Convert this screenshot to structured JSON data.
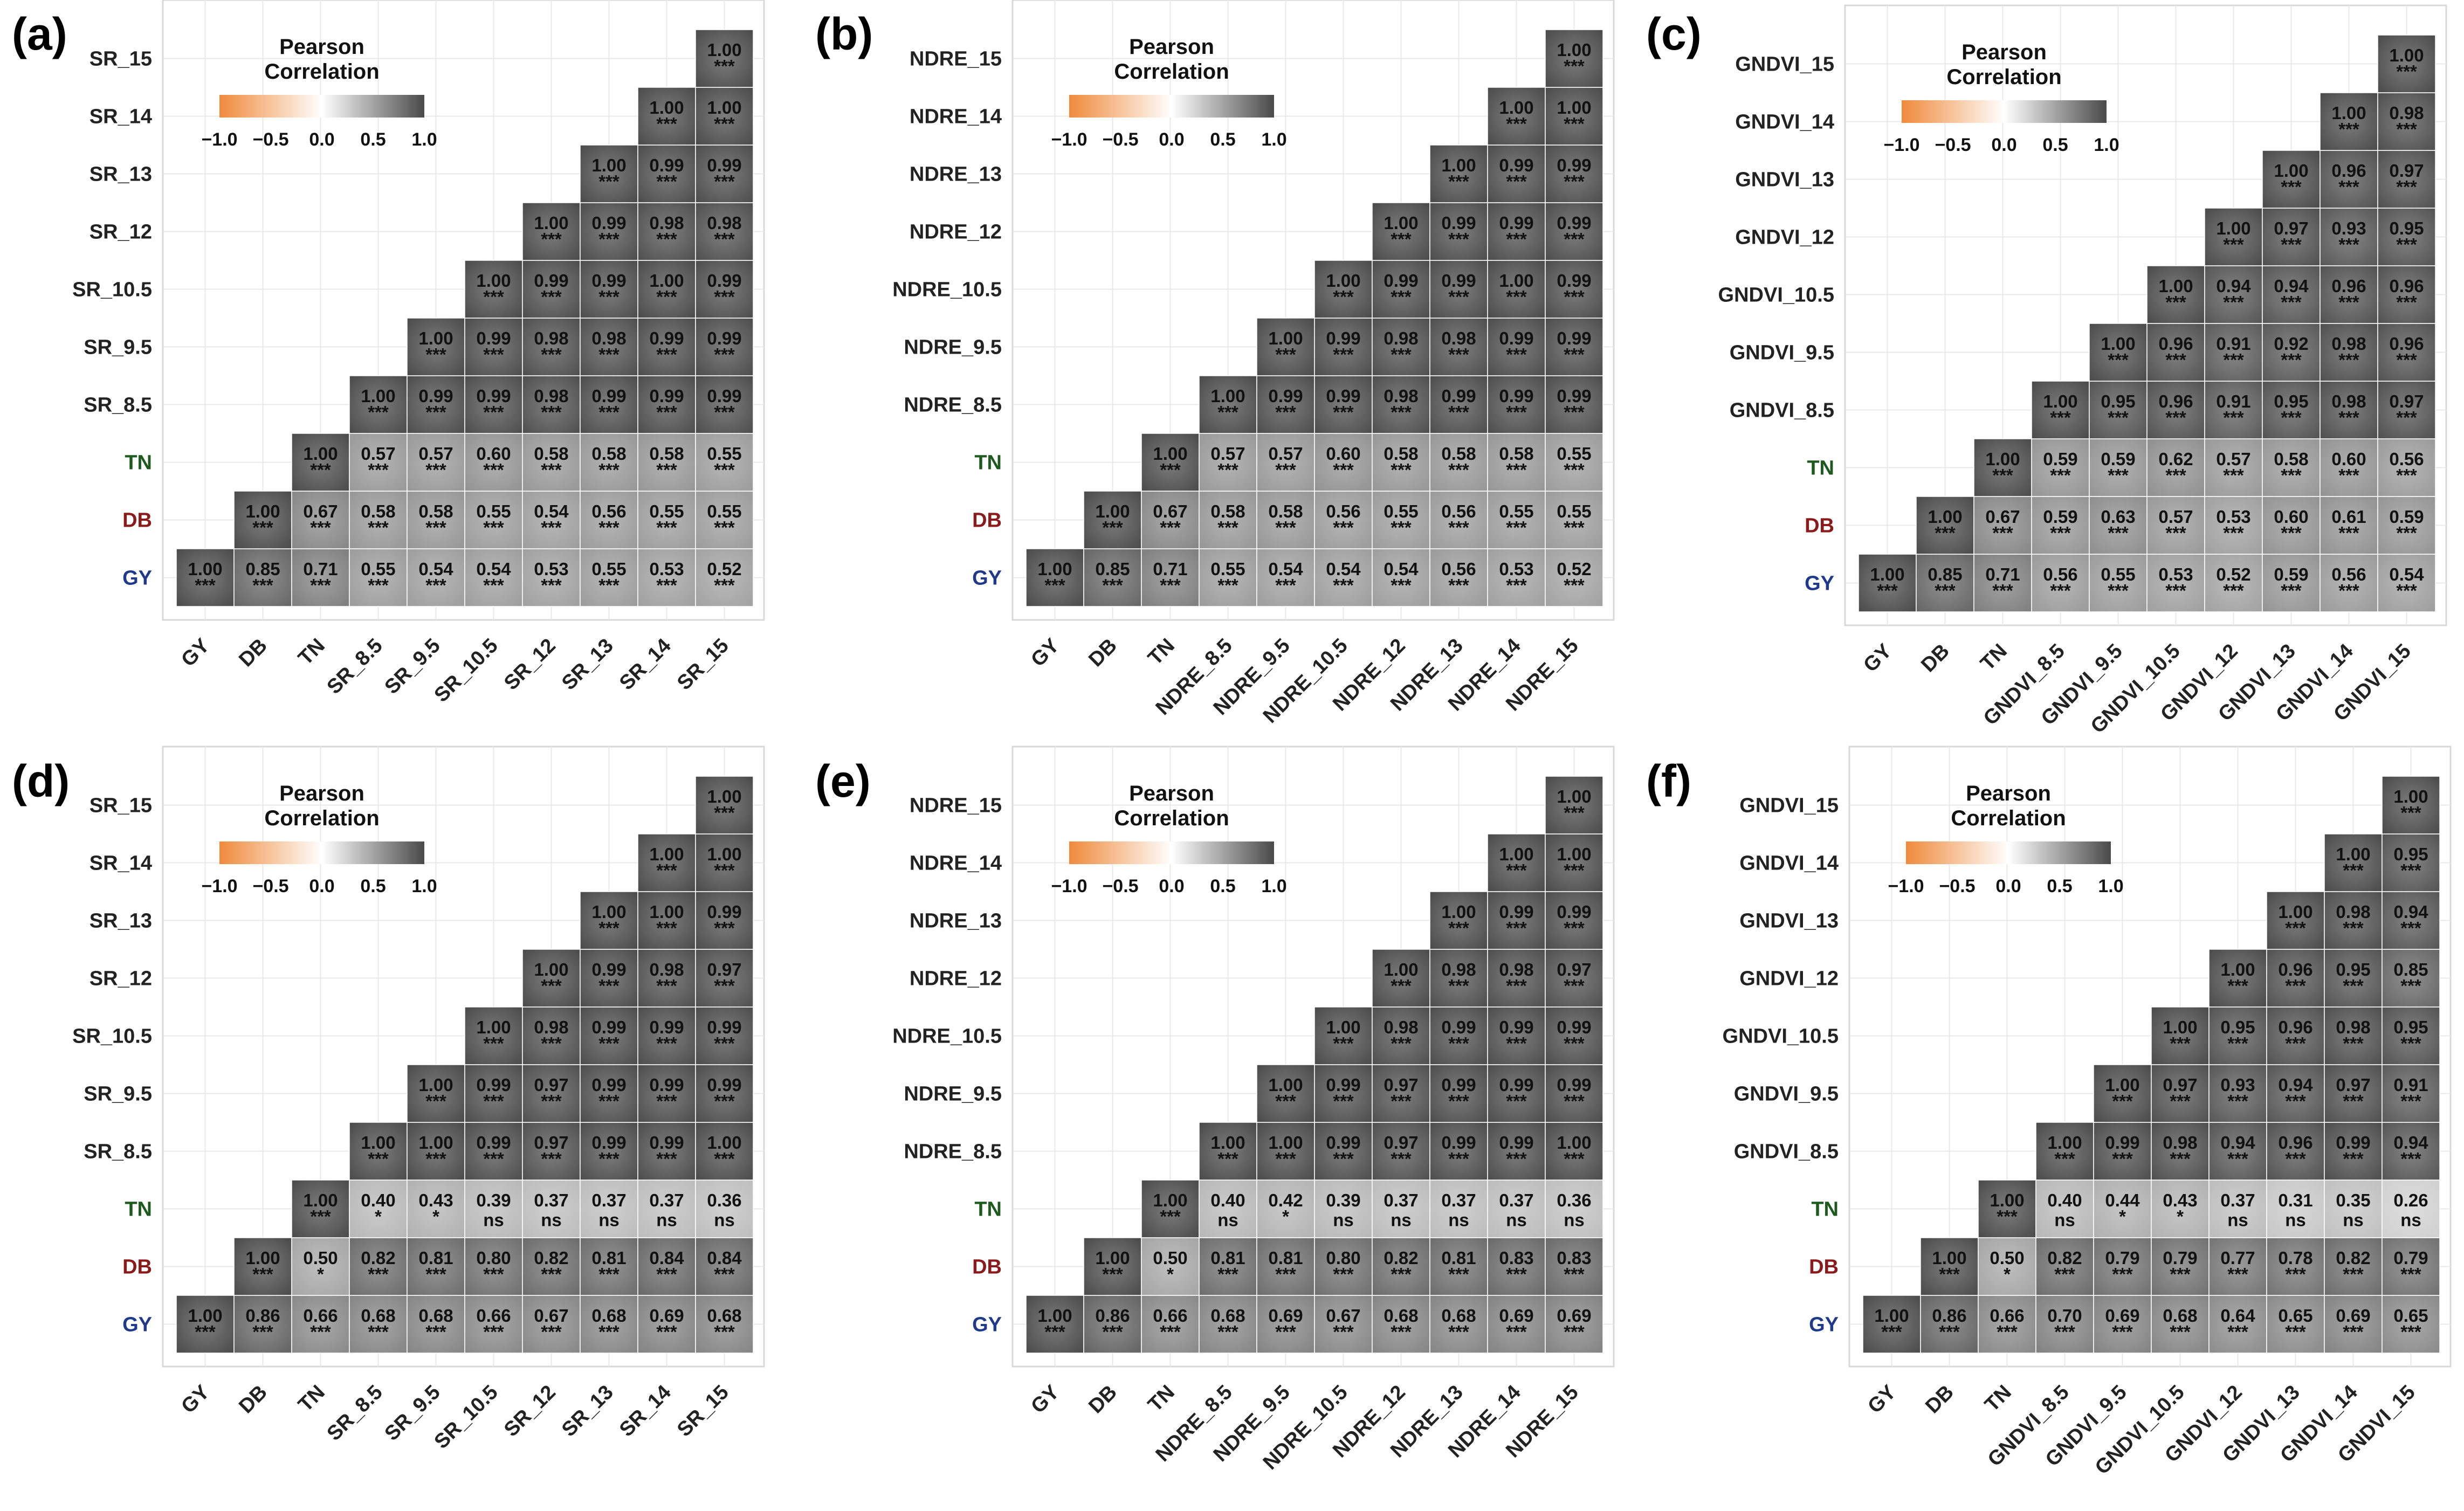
{
  "colors": {
    "GY": "#1f3a8a",
    "DB": "#8b1a1a",
    "TN": "#1e5a1e",
    "band": "#444444",
    "neg": "#f08a3c",
    "mid": "#ffffff",
    "pos": "#4a4a4a",
    "grid": "#e8e8e8",
    "panel_border": "#d8d8d8"
  },
  "legend": {
    "title_line1": "Pearson",
    "title_line2": "Correlation",
    "ticks": [
      "−1.0",
      "−0.5",
      "0.0",
      "0.5",
      "1.0"
    ]
  },
  "chart_data": [
    {
      "type": "heatmap",
      "panel": "(a)",
      "variables": [
        "GY",
        "DB",
        "TN",
        "SR_8.5",
        "SR_9.5",
        "SR_10.5",
        "SR_12",
        "SR_13",
        "SR_14",
        "SR_15"
      ],
      "x_labels": [
        "GY",
        "DB",
        "TN",
        "SR_8.5",
        "SR_9.5",
        "SR_10.5",
        "SR_12",
        "SR_13",
        "SR_14",
        "SR_15"
      ],
      "y_labels": [
        "SR_15",
        "SR_14",
        "SR_13",
        "SR_12",
        "SR_10.5",
        "SR_9.5",
        "SR_8.5",
        "TN",
        "DB",
        "GY"
      ],
      "values": [
        [
          "1.00"
        ],
        [
          "0.85",
          "1.00"
        ],
        [
          "0.71",
          "0.67",
          "1.00"
        ],
        [
          "0.55",
          "0.58",
          "0.57",
          "1.00"
        ],
        [
          "0.54",
          "0.58",
          "0.57",
          "0.99",
          "1.00"
        ],
        [
          "0.54",
          "0.55",
          "0.60",
          "0.99",
          "0.99",
          "1.00"
        ],
        [
          "0.53",
          "0.54",
          "0.58",
          "0.98",
          "0.98",
          "0.99",
          "1.00"
        ],
        [
          "0.55",
          "0.56",
          "0.58",
          "0.99",
          "0.98",
          "0.99",
          "0.99",
          "1.00"
        ],
        [
          "0.53",
          "0.55",
          "0.58",
          "0.99",
          "0.99",
          "1.00",
          "0.98",
          "0.99",
          "1.00"
        ],
        [
          "0.52",
          "0.55",
          "0.55",
          "0.99",
          "0.99",
          "0.99",
          "0.98",
          "0.99",
          "1.00",
          "1.00"
        ]
      ],
      "significance": [
        [
          "***"
        ],
        [
          "***",
          "***"
        ],
        [
          "***",
          "***",
          "***"
        ],
        [
          "***",
          "***",
          "***",
          "***"
        ],
        [
          "***",
          "***",
          "***",
          "***",
          "***"
        ],
        [
          "***",
          "***",
          "***",
          "***",
          "***",
          "***"
        ],
        [
          "***",
          "***",
          "***",
          "***",
          "***",
          "***",
          "***"
        ],
        [
          "***",
          "***",
          "***",
          "***",
          "***",
          "***",
          "***",
          "***"
        ],
        [
          "***",
          "***",
          "***",
          "***",
          "***",
          "***",
          "***",
          "***",
          "***"
        ],
        [
          "***",
          "***",
          "***",
          "***",
          "***",
          "***",
          "***",
          "***",
          "***",
          "***"
        ]
      ]
    },
    {
      "type": "heatmap",
      "panel": "(b)",
      "variables": [
        "GY",
        "DB",
        "TN",
        "NDRE_8.5",
        "NDRE_9.5",
        "NDRE_10.5",
        "NDRE_12",
        "NDRE_13",
        "NDRE_14",
        "NDRE_15"
      ],
      "x_labels": [
        "GY",
        "DB",
        "TN",
        "NDRE_8.5",
        "NDRE_9.5",
        "NDRE_10.5",
        "NDRE_12",
        "NDRE_13",
        "NDRE_14",
        "NDRE_15"
      ],
      "y_labels": [
        "NDRE_15",
        "NDRE_14",
        "NDRE_13",
        "NDRE_12",
        "NDRE_10.5",
        "NDRE_9.5",
        "NDRE_8.5",
        "TN",
        "DB",
        "GY"
      ],
      "values": [
        [
          "1.00"
        ],
        [
          "0.85",
          "1.00"
        ],
        [
          "0.71",
          "0.67",
          "1.00"
        ],
        [
          "0.55",
          "0.58",
          "0.57",
          "1.00"
        ],
        [
          "0.54",
          "0.58",
          "0.57",
          "0.99",
          "1.00"
        ],
        [
          "0.54",
          "0.56",
          "0.60",
          "0.99",
          "0.99",
          "1.00"
        ],
        [
          "0.54",
          "0.55",
          "0.58",
          "0.98",
          "0.98",
          "0.99",
          "1.00"
        ],
        [
          "0.56",
          "0.56",
          "0.58",
          "0.99",
          "0.98",
          "0.99",
          "0.99",
          "1.00"
        ],
        [
          "0.53",
          "0.55",
          "0.58",
          "0.99",
          "0.99",
          "1.00",
          "0.99",
          "0.99",
          "1.00"
        ],
        [
          "0.52",
          "0.55",
          "0.55",
          "0.99",
          "0.99",
          "0.99",
          "0.99",
          "0.99",
          "1.00",
          "1.00"
        ]
      ],
      "significance": [
        [
          "***"
        ],
        [
          "***",
          "***"
        ],
        [
          "***",
          "***",
          "***"
        ],
        [
          "***",
          "***",
          "***",
          "***"
        ],
        [
          "***",
          "***",
          "***",
          "***",
          "***"
        ],
        [
          "***",
          "***",
          "***",
          "***",
          "***",
          "***"
        ],
        [
          "***",
          "***",
          "***",
          "***",
          "***",
          "***",
          "***"
        ],
        [
          "***",
          "***",
          "***",
          "***",
          "***",
          "***",
          "***",
          "***"
        ],
        [
          "***",
          "***",
          "***",
          "***",
          "***",
          "***",
          "***",
          "***",
          "***"
        ],
        [
          "***",
          "***",
          "***",
          "***",
          "***",
          "***",
          "***",
          "***",
          "***",
          "***"
        ]
      ]
    },
    {
      "type": "heatmap",
      "panel": "(c)",
      "variables": [
        "GY",
        "DB",
        "TN",
        "GNDVI_8.5",
        "GNDVI_9.5",
        "GNDVI_10.5",
        "GNDVI_12",
        "GNDVI_13",
        "GNDVI_14",
        "GNDVI_15"
      ],
      "x_labels": [
        "GY",
        "DB",
        "TN",
        "GNDVI_8.5",
        "GNDVI_9.5",
        "GNDVI_10.5",
        "GNDVI_12",
        "GNDVI_13",
        "GNDVI_14",
        "GNDVI_15"
      ],
      "y_labels": [
        "GNDVI_15",
        "GNDVI_14",
        "GNDVI_13",
        "GNDVI_12",
        "GNDVI_10.5",
        "GNDVI_9.5",
        "GNDVI_8.5",
        "TN",
        "DB",
        "GY"
      ],
      "values": [
        [
          "1.00"
        ],
        [
          "0.85",
          "1.00"
        ],
        [
          "0.71",
          "0.67",
          "1.00"
        ],
        [
          "0.56",
          "0.59",
          "0.59",
          "1.00"
        ],
        [
          "0.55",
          "0.63",
          "0.59",
          "0.95",
          "1.00"
        ],
        [
          "0.53",
          "0.57",
          "0.62",
          "0.96",
          "0.96",
          "1.00"
        ],
        [
          "0.52",
          "0.53",
          "0.57",
          "0.91",
          "0.91",
          "0.94",
          "1.00"
        ],
        [
          "0.59",
          "0.60",
          "0.58",
          "0.95",
          "0.92",
          "0.94",
          "0.97",
          "1.00"
        ],
        [
          "0.56",
          "0.61",
          "0.60",
          "0.98",
          "0.98",
          "0.96",
          "0.93",
          "0.96",
          "1.00"
        ],
        [
          "0.54",
          "0.59",
          "0.56",
          "0.97",
          "0.96",
          "0.96",
          "0.95",
          "0.97",
          "0.98",
          "1.00"
        ]
      ],
      "significance": [
        [
          "***"
        ],
        [
          "***",
          "***"
        ],
        [
          "***",
          "***",
          "***"
        ],
        [
          "***",
          "***",
          "***",
          "***"
        ],
        [
          "***",
          "***",
          "***",
          "***",
          "***"
        ],
        [
          "***",
          "***",
          "***",
          "***",
          "***",
          "***"
        ],
        [
          "***",
          "***",
          "***",
          "***",
          "***",
          "***",
          "***"
        ],
        [
          "***",
          "***",
          "***",
          "***",
          "***",
          "***",
          "***",
          "***"
        ],
        [
          "***",
          "***",
          "***",
          "***",
          "***",
          "***",
          "***",
          "***",
          "***"
        ],
        [
          "***",
          "***",
          "***",
          "***",
          "***",
          "***",
          "***",
          "***",
          "***",
          "***"
        ]
      ]
    },
    {
      "type": "heatmap",
      "panel": "(d)",
      "variables": [
        "GY",
        "DB",
        "TN",
        "SR_8.5",
        "SR_9.5",
        "SR_10.5",
        "SR_12",
        "SR_13",
        "SR_14",
        "SR_15"
      ],
      "x_labels": [
        "GY",
        "DB",
        "TN",
        "SR_8.5",
        "SR_9.5",
        "SR_10.5",
        "SR_12",
        "SR_13",
        "SR_14",
        "SR_15"
      ],
      "y_labels": [
        "SR_15",
        "SR_14",
        "SR_13",
        "SR_12",
        "SR_10.5",
        "SR_9.5",
        "SR_8.5",
        "TN",
        "DB",
        "GY"
      ],
      "values": [
        [
          "1.00"
        ],
        [
          "0.86",
          "1.00"
        ],
        [
          "0.66",
          "0.50",
          "1.00"
        ],
        [
          "0.68",
          "0.82",
          "0.40",
          "1.00"
        ],
        [
          "0.68",
          "0.81",
          "0.43",
          "1.00",
          "1.00"
        ],
        [
          "0.66",
          "0.80",
          "0.39",
          "0.99",
          "0.99",
          "1.00"
        ],
        [
          "0.67",
          "0.82",
          "0.37",
          "0.97",
          "0.97",
          "0.98",
          "1.00"
        ],
        [
          "0.68",
          "0.81",
          "0.37",
          "0.99",
          "0.99",
          "0.99",
          "0.99",
          "1.00"
        ],
        [
          "0.69",
          "0.84",
          "0.37",
          "0.99",
          "0.99",
          "0.99",
          "0.98",
          "1.00",
          "1.00"
        ],
        [
          "0.68",
          "0.84",
          "0.36",
          "1.00",
          "0.99",
          "0.99",
          "0.97",
          "0.99",
          "1.00",
          "1.00"
        ]
      ],
      "significance": [
        [
          "***"
        ],
        [
          "***",
          "***"
        ],
        [
          "***",
          "*",
          "***"
        ],
        [
          "***",
          "***",
          "*",
          "***"
        ],
        [
          "***",
          "***",
          "*",
          "***",
          "***"
        ],
        [
          "***",
          "***",
          "ns",
          "***",
          "***",
          "***"
        ],
        [
          "***",
          "***",
          "ns",
          "***",
          "***",
          "***",
          "***"
        ],
        [
          "***",
          "***",
          "ns",
          "***",
          "***",
          "***",
          "***",
          "***"
        ],
        [
          "***",
          "***",
          "ns",
          "***",
          "***",
          "***",
          "***",
          "***",
          "***"
        ],
        [
          "***",
          "***",
          "ns",
          "***",
          "***",
          "***",
          "***",
          "***",
          "***",
          "***"
        ]
      ]
    },
    {
      "type": "heatmap",
      "panel": "(e)",
      "variables": [
        "GY",
        "DB",
        "TN",
        "NDRE_8.5",
        "NDRE_9.5",
        "NDRE_10.5",
        "NDRE_12",
        "NDRE_13",
        "NDRE_14",
        "NDRE_15"
      ],
      "x_labels": [
        "GY",
        "DB",
        "TN",
        "NDRE_8.5",
        "NDRE_9.5",
        "NDRE_10.5",
        "NDRE_12",
        "NDRE_13",
        "NDRE_14",
        "NDRE_15"
      ],
      "y_labels": [
        "NDRE_15",
        "NDRE_14",
        "NDRE_13",
        "NDRE_12",
        "NDRE_10.5",
        "NDRE_9.5",
        "NDRE_8.5",
        "TN",
        "DB",
        "GY"
      ],
      "values": [
        [
          "1.00"
        ],
        [
          "0.86",
          "1.00"
        ],
        [
          "0.66",
          "0.50",
          "1.00"
        ],
        [
          "0.68",
          "0.81",
          "0.40",
          "1.00"
        ],
        [
          "0.69",
          "0.81",
          "0.42",
          "1.00",
          "1.00"
        ],
        [
          "0.67",
          "0.80",
          "0.39",
          "0.99",
          "0.99",
          "1.00"
        ],
        [
          "0.68",
          "0.82",
          "0.37",
          "0.97",
          "0.97",
          "0.98",
          "1.00"
        ],
        [
          "0.68",
          "0.81",
          "0.37",
          "0.99",
          "0.99",
          "0.99",
          "0.98",
          "1.00"
        ],
        [
          "0.69",
          "0.83",
          "0.37",
          "0.99",
          "0.99",
          "0.99",
          "0.98",
          "0.99",
          "1.00"
        ],
        [
          "0.69",
          "0.83",
          "0.36",
          "1.00",
          "0.99",
          "0.99",
          "0.97",
          "0.99",
          "1.00",
          "1.00"
        ]
      ],
      "significance": [
        [
          "***"
        ],
        [
          "***",
          "***"
        ],
        [
          "***",
          "*",
          "***"
        ],
        [
          "***",
          "***",
          "ns",
          "***"
        ],
        [
          "***",
          "***",
          "*",
          "***",
          "***"
        ],
        [
          "***",
          "***",
          "ns",
          "***",
          "***",
          "***"
        ],
        [
          "***",
          "***",
          "ns",
          "***",
          "***",
          "***",
          "***"
        ],
        [
          "***",
          "***",
          "ns",
          "***",
          "***",
          "***",
          "***",
          "***"
        ],
        [
          "***",
          "***",
          "ns",
          "***",
          "***",
          "***",
          "***",
          "***",
          "***"
        ],
        [
          "***",
          "***",
          "ns",
          "***",
          "***",
          "***",
          "***",
          "***",
          "***",
          "***"
        ]
      ]
    },
    {
      "type": "heatmap",
      "panel": "(f)",
      "variables": [
        "GY",
        "DB",
        "TN",
        "GNDVI_8.5",
        "GNDVI_9.5",
        "GNDVI_10.5",
        "GNDVI_12",
        "GNDVI_13",
        "GNDVI_14",
        "GNDVI_15"
      ],
      "x_labels": [
        "GY",
        "DB",
        "TN",
        "GNDVI_8.5",
        "GNDVI_9.5",
        "GNDVI_10.5",
        "GNDVI_12",
        "GNDVI_13",
        "GNDVI_14",
        "GNDVI_15"
      ],
      "y_labels": [
        "GNDVI_15",
        "GNDVI_14",
        "GNDVI_13",
        "GNDVI_12",
        "GNDVI_10.5",
        "GNDVI_9.5",
        "GNDVI_8.5",
        "TN",
        "DB",
        "GY"
      ],
      "values": [
        [
          "1.00"
        ],
        [
          "0.86",
          "1.00"
        ],
        [
          "0.66",
          "0.50",
          "1.00"
        ],
        [
          "0.70",
          "0.82",
          "0.40",
          "1.00"
        ],
        [
          "0.69",
          "0.79",
          "0.44",
          "0.99",
          "1.00"
        ],
        [
          "0.68",
          "0.79",
          "0.43",
          "0.98",
          "0.97",
          "1.00"
        ],
        [
          "0.64",
          "0.77",
          "0.37",
          "0.94",
          "0.93",
          "0.95",
          "1.00"
        ],
        [
          "0.65",
          "0.78",
          "0.31",
          "0.96",
          "0.94",
          "0.96",
          "0.96",
          "1.00"
        ],
        [
          "0.69",
          "0.82",
          "0.35",
          "0.99",
          "0.97",
          "0.98",
          "0.95",
          "0.98",
          "1.00"
        ],
        [
          "0.65",
          "0.79",
          "0.26",
          "0.94",
          "0.91",
          "0.95",
          "0.85",
          "0.94",
          "0.95",
          "1.00"
        ]
      ],
      "significance": [
        [
          "***"
        ],
        [
          "***",
          "***"
        ],
        [
          "***",
          "*",
          "***"
        ],
        [
          "***",
          "***",
          "ns",
          "***"
        ],
        [
          "***",
          "***",
          "*",
          "***",
          "***"
        ],
        [
          "***",
          "***",
          "*",
          "***",
          "***",
          "***"
        ],
        [
          "***",
          "***",
          "ns",
          "***",
          "***",
          "***",
          "***"
        ],
        [
          "***",
          "***",
          "ns",
          "***",
          "***",
          "***",
          "***",
          "***"
        ],
        [
          "***",
          "***",
          "ns",
          "***",
          "***",
          "***",
          "***",
          "***",
          "***"
        ],
        [
          "***",
          "***",
          "ns",
          "***",
          "***",
          "***",
          "***",
          "***",
          "***",
          "***"
        ]
      ]
    }
  ]
}
